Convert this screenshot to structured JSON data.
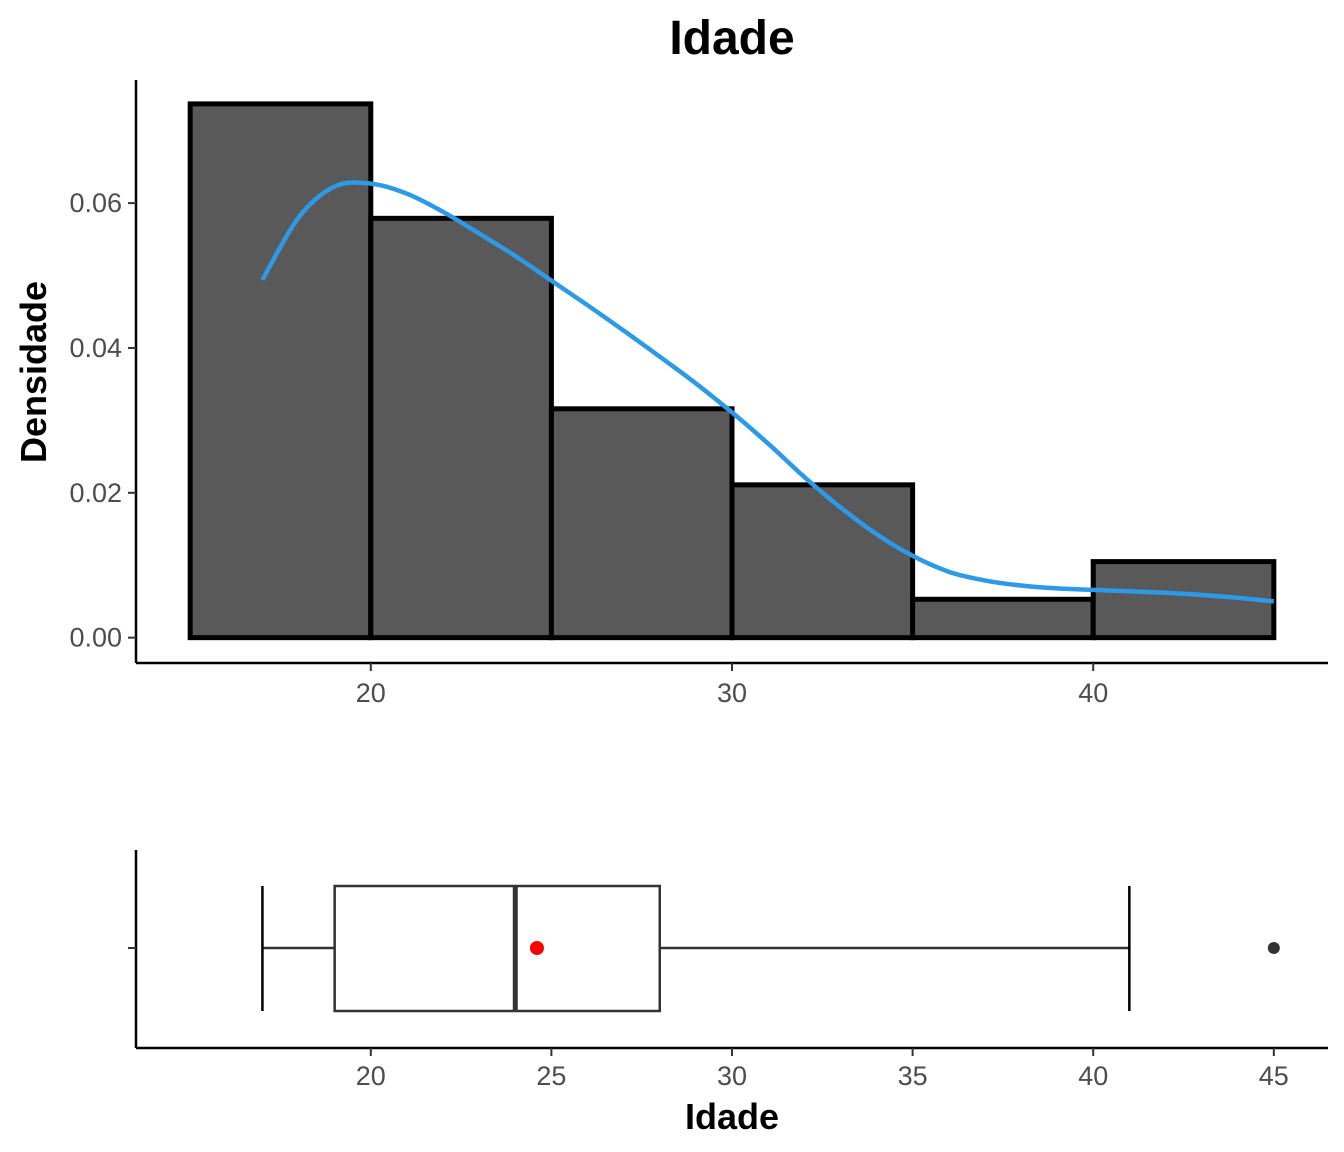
{
  "chart_data": [
    {
      "type": "bar",
      "subtype": "histogram-with-density",
      "title": "Idade",
      "xlabel": "",
      "ylabel": "Densidade",
      "x_ticks": [
        "20",
        "30",
        "40"
      ],
      "y_ticks": [
        "0.00",
        "0.02",
        "0.04",
        "0.06"
      ],
      "xlim": [
        13.5,
        46.5
      ],
      "ylim": [
        -0.0035,
        0.077
      ],
      "bins": [
        {
          "start": 15,
          "end": 20,
          "density": 0.0737
        },
        {
          "start": 20,
          "end": 25,
          "density": 0.0579
        },
        {
          "start": 25,
          "end": 30,
          "density": 0.0316
        },
        {
          "start": 30,
          "end": 35,
          "density": 0.0211
        },
        {
          "start": 35,
          "end": 40,
          "density": 0.0053
        },
        {
          "start": 40,
          "end": 45,
          "density": 0.0105
        }
      ],
      "bar_fill": "#595959",
      "bar_outline": "#000000",
      "density_curve": {
        "color": "#2c9ae6",
        "x": [
          17,
          18,
          19,
          20,
          21,
          22,
          23,
          24,
          25,
          26,
          27,
          28,
          29,
          30,
          31,
          32,
          33,
          34,
          35,
          36,
          37,
          38,
          39,
          40,
          41,
          42,
          43,
          44,
          45
        ],
        "y": [
          0.0494,
          0.058,
          0.0623,
          0.0627,
          0.0613,
          0.0588,
          0.0558,
          0.0527,
          0.0493,
          0.0459,
          0.0424,
          0.0388,
          0.0351,
          0.0311,
          0.0268,
          0.0222,
          0.018,
          0.0143,
          0.0113,
          0.0091,
          0.0079,
          0.0072,
          0.0068,
          0.0066,
          0.0064,
          0.0062,
          0.0059,
          0.0055,
          0.005
        ]
      }
    },
    {
      "type": "boxplot",
      "xlabel": "Idade",
      "x_ticks": [
        "20",
        "25",
        "30",
        "35",
        "40",
        "45"
      ],
      "xlim": [
        13.5,
        46.5
      ],
      "min": 17,
      "q1": 19,
      "median": 24,
      "q3": 28,
      "max": 41,
      "mean": 24.6,
      "outliers": [
        45
      ],
      "box_color": "#333333",
      "mean_color": "#ff0000",
      "outlier_color": "#333333"
    }
  ]
}
